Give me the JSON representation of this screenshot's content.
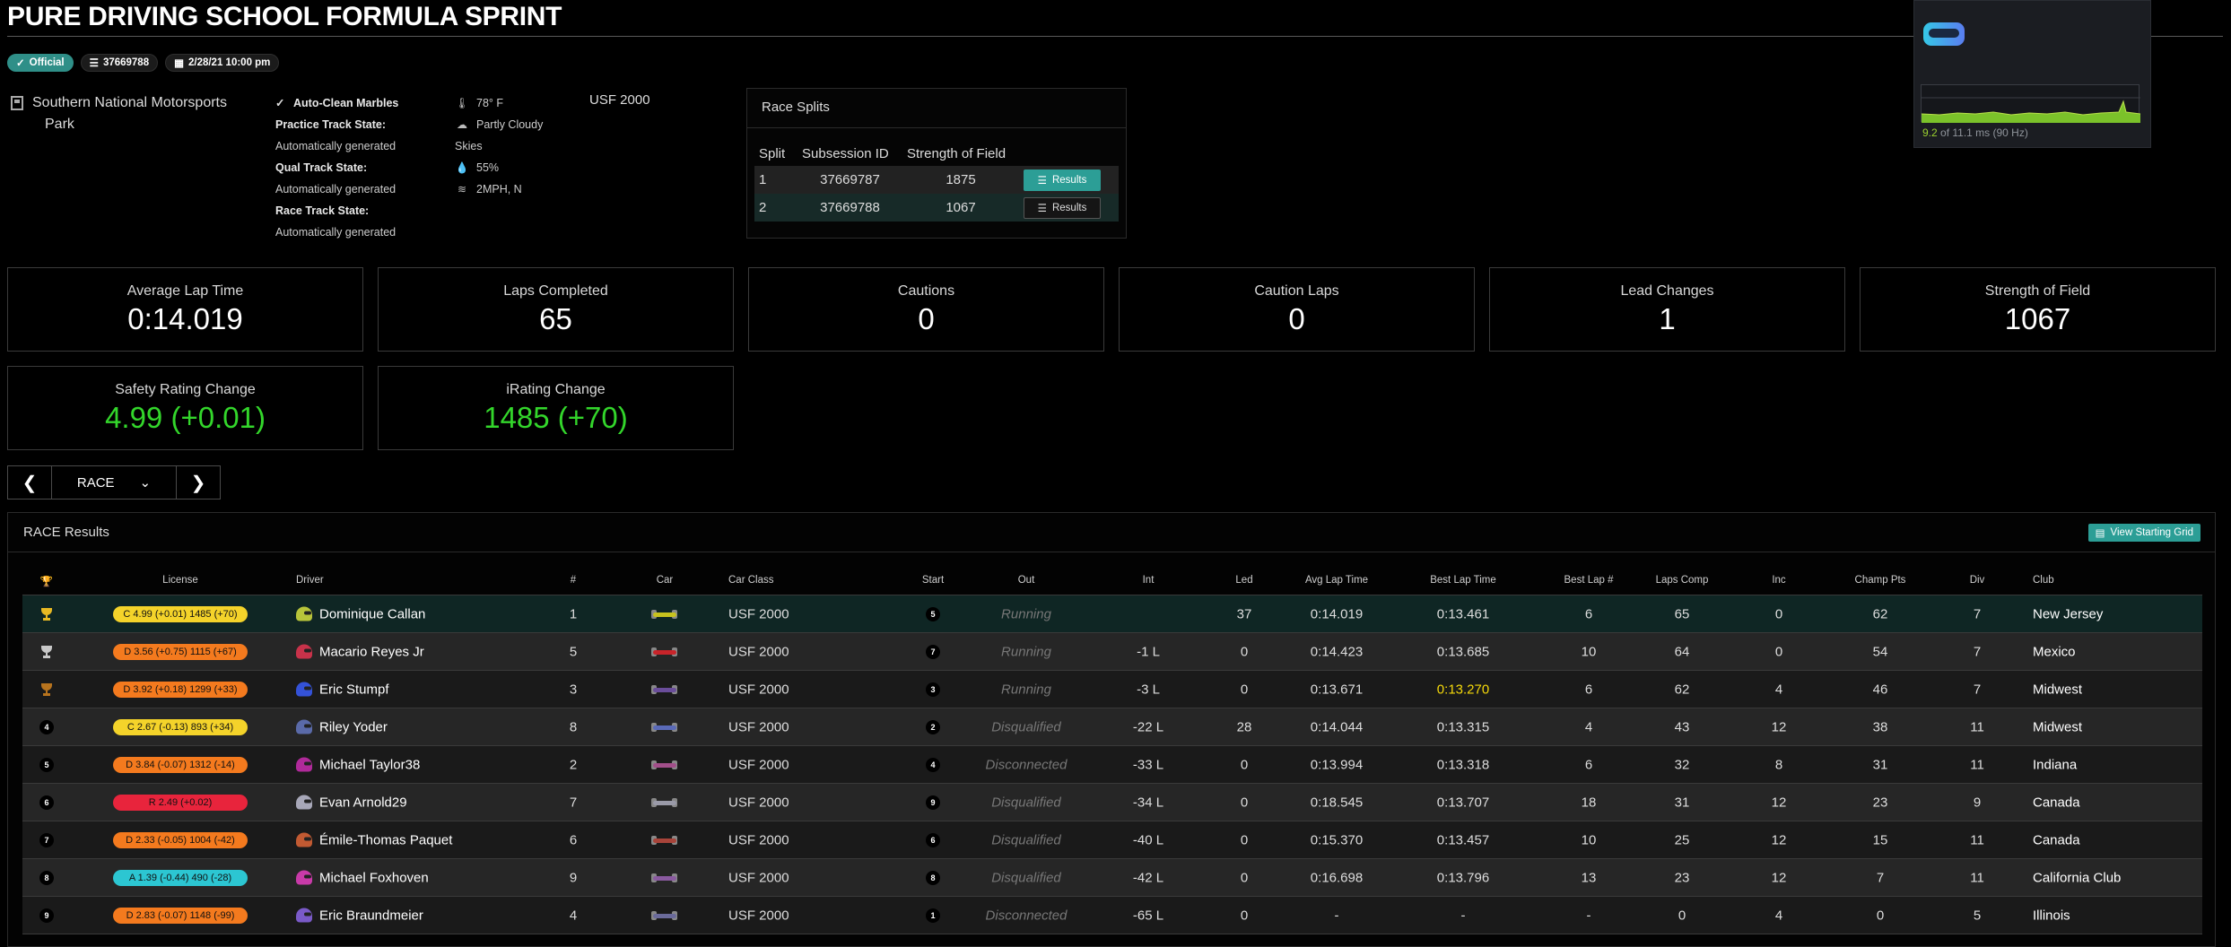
{
  "header": {
    "title": "PURE DRIVING SCHOOL FORMULA SPRINT",
    "badges": {
      "official": "Official",
      "subsession": "37669788",
      "datetime": "2/28/21 10:00 pm"
    }
  },
  "session_info": {
    "track_line1": "Southern National Motorsports",
    "track_line2": "Park",
    "auto_clean": "Auto-Clean Marbles",
    "practice_state_label": "Practice Track State:",
    "practice_state_value": "Automatically generated",
    "qual_state_label": "Qual Track State:",
    "qual_state_value": "Automatically generated",
    "race_state_label": "Race Track State:",
    "race_state_value": "Automatically generated",
    "temperature": "78° F",
    "sky_line1": "Partly Cloudy",
    "sky_line2": "Skies",
    "humidity": "55%",
    "wind": "2MPH, N",
    "car_class": "USF 2000"
  },
  "race_splits": {
    "title": "Race Splits",
    "headers": [
      "Split",
      "Subsession ID",
      "Strength of Field"
    ],
    "rows": [
      {
        "split": "1",
        "subsession": "37669787",
        "sof": "1875",
        "button": "Results"
      },
      {
        "split": "2",
        "subsession": "37669788",
        "sof": "1067",
        "button": "Results"
      }
    ]
  },
  "overlay": {
    "graph_current": "9.2",
    "graph_text": " of 11.1 ms (90 Hz)"
  },
  "stats": [
    {
      "label": "Average Lap Time",
      "value": "0:14.019"
    },
    {
      "label": "Laps Completed",
      "value": "65"
    },
    {
      "label": "Cautions",
      "value": "0"
    },
    {
      "label": "Caution Laps",
      "value": "0"
    },
    {
      "label": "Lead Changes",
      "value": "1"
    },
    {
      "label": "Strength of Field",
      "value": "1067"
    },
    {
      "label": "Safety Rating Change",
      "value": "4.99 (+0.01)"
    },
    {
      "label": "iRating Change",
      "value": "1485 (+70)"
    }
  ],
  "session_nav": {
    "selected": "RACE"
  },
  "results": {
    "title": "RACE Results",
    "view_grid_button": "View Starting Grid",
    "headers": {
      "license": "License",
      "driver": "Driver",
      "num": "#",
      "car": "Car",
      "car_class": "Car Class",
      "start": "Start",
      "out": "Out",
      "int": "Int",
      "led": "Led",
      "avg": "Avg Lap Time",
      "best": "Best Lap Time",
      "best_num": "Best Lap #",
      "laps": "Laps Comp",
      "inc": "Inc",
      "champ": "Champ Pts",
      "div": "Div",
      "club": "Club"
    },
    "rows": [
      {
        "pos": "1",
        "license": "C 4.99 (+0.01) 1485 (+70)",
        "lic_color": "#f4d32a",
        "driver": "Dominique Callan",
        "helmet": "#b8c43a",
        "num": "1",
        "car_color": "#c7c21e",
        "car_class": "USF 2000",
        "start": "5",
        "out": "Running",
        "int": "",
        "led": "37",
        "avg": "0:14.019",
        "best": "0:13.461",
        "best_num": "6",
        "laps": "65",
        "inc": "0",
        "champ": "62",
        "div": "7",
        "club": "New Jersey"
      },
      {
        "pos": "2",
        "license": "D 3.56 (+0.75) 1115 (+67)",
        "lic_color": "#f47a1e",
        "driver": "Macario Reyes Jr",
        "helmet": "#c8324a",
        "num": "5",
        "car_color": "#c8242a",
        "car_class": "USF 2000",
        "start": "7",
        "out": "Running",
        "int": "-1 L",
        "led": "0",
        "avg": "0:14.423",
        "best": "0:13.685",
        "best_num": "10",
        "laps": "64",
        "inc": "0",
        "champ": "54",
        "div": "7",
        "club": "Mexico"
      },
      {
        "pos": "3",
        "license": "D 3.92 (+0.18) 1299 (+33)",
        "lic_color": "#f47a1e",
        "driver": "Eric Stumpf",
        "helmet": "#3452d8",
        "num": "3",
        "car_color": "#6a4d9a",
        "car_class": "USF 2000",
        "start": "3",
        "out": "Running",
        "int": "-3 L",
        "led": "0",
        "avg": "0:13.671",
        "best": "0:13.270",
        "best_yellow": "yes",
        "best_num": "6",
        "laps": "62",
        "inc": "4",
        "champ": "46",
        "div": "7",
        "club": "Midwest"
      },
      {
        "pos": "4",
        "license": "C 2.67 (-0.13) 893 (+34)",
        "lic_color": "#f4d32a",
        "driver": "Riley Yoder",
        "helmet": "#5a6aa8",
        "num": "8",
        "car_color": "#5a6ab8",
        "car_class": "USF 2000",
        "start": "2",
        "out": "Disqualified",
        "int": "-22 L",
        "led": "28",
        "avg": "0:14.044",
        "best": "0:13.315",
        "best_num": "4",
        "laps": "43",
        "inc": "12",
        "champ": "38",
        "div": "11",
        "club": "Midwest"
      },
      {
        "pos": "5",
        "license": "D 3.84 (-0.07) 1312 (-14)",
        "lic_color": "#f47a1e",
        "driver": "Michael Taylor38",
        "helmet": "#b02a9a",
        "num": "2",
        "car_color": "#a24f8a",
        "car_class": "USF 2000",
        "start": "4",
        "out": "Disconnected",
        "int": "-33 L",
        "led": "0",
        "avg": "0:13.994",
        "best": "0:13.318",
        "best_num": "6",
        "laps": "32",
        "inc": "8",
        "champ": "31",
        "div": "11",
        "club": "Indiana"
      },
      {
        "pos": "6",
        "license": "R 2.49 (+0.02)",
        "lic_color": "#e8243c",
        "driver": "Evan Arnold29",
        "helmet": "#a7a7b8",
        "num": "7",
        "car_color": "#9a9aa8",
        "car_class": "USF 2000",
        "start": "9",
        "out": "Disqualified",
        "int": "-34 L",
        "led": "0",
        "avg": "0:18.545",
        "best": "0:13.707",
        "best_num": "18",
        "laps": "31",
        "inc": "12",
        "champ": "23",
        "div": "9",
        "club": "Canada"
      },
      {
        "pos": "7",
        "license": "D 2.33 (-0.05) 1004 (-42)",
        "lic_color": "#f47a1e",
        "driver": "Émile-Thomas Paquet",
        "helmet": "#c25a32",
        "num": "6",
        "car_color": "#a8443a",
        "car_class": "USF 2000",
        "start": "6",
        "out": "Disqualified",
        "int": "-40 L",
        "led": "0",
        "avg": "0:15.370",
        "best": "0:13.457",
        "best_num": "10",
        "laps": "25",
        "inc": "12",
        "champ": "15",
        "div": "11",
        "club": "Canada"
      },
      {
        "pos": "8",
        "license": "A 1.39 (-0.44) 490 (-28)",
        "lic_color": "#2cc6d2",
        "driver": "Michael Foxhoven",
        "helmet": "#c83aa8",
        "num": "9",
        "car_color": "#8a5aa0",
        "car_class": "USF 2000",
        "start": "8",
        "out": "Disqualified",
        "int": "-42 L",
        "led": "0",
        "avg": "0:16.698",
        "best": "0:13.796",
        "best_num": "13",
        "laps": "23",
        "inc": "12",
        "champ": "7",
        "div": "11",
        "club": "California Club"
      },
      {
        "pos": "9",
        "license": "D 2.83 (-0.07) 1148 (-99)",
        "lic_color": "#f47a1e",
        "driver": "Eric Braundmeier",
        "helmet": "#7a5ac8",
        "num": "4",
        "car_color": "#6a6a9a",
        "car_class": "USF 2000",
        "start": "1",
        "out": "Disconnected",
        "int": "-65 L",
        "led": "0",
        "avg": "-",
        "best": "-",
        "best_num": "-",
        "laps": "0",
        "inc": "4",
        "champ": "0",
        "div": "5",
        "club": "Illinois"
      }
    ]
  },
  "colors": {
    "teal": "#2c9e96",
    "green": "#33d62b",
    "gold": "#e8b923",
    "silver": "#c8c8c8",
    "bronze": "#b8741e"
  }
}
